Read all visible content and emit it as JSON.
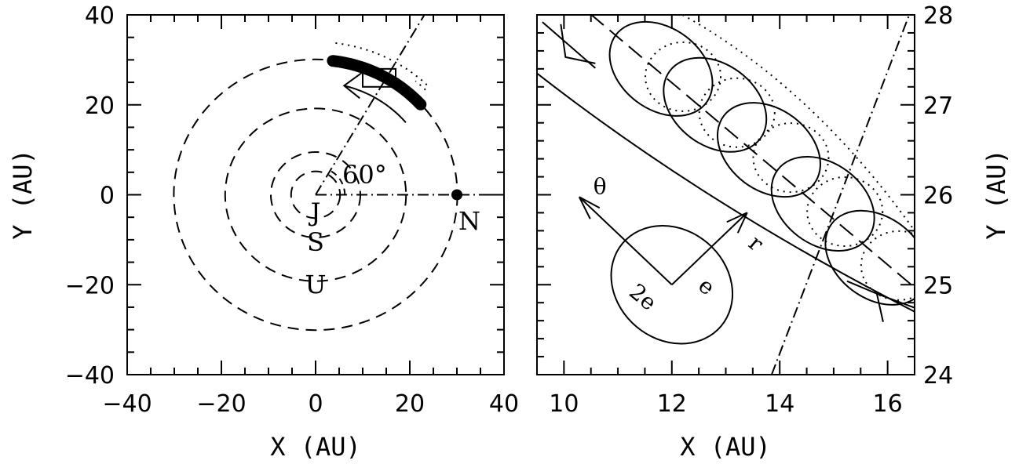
{
  "chart_data": [
    {
      "type": "line",
      "xlabel": "X (AU)",
      "ylabel": "Y (AU)",
      "xlim": [
        -40,
        40
      ],
      "ylim": [
        -40,
        40
      ],
      "x_ticks": [
        "−40",
        "−20",
        "0",
        "20",
        "40"
      ],
      "y_ticks": [
        "−40",
        "−20",
        "0",
        "20",
        "40"
      ],
      "orbits": [
        {
          "planet": "J",
          "radius_au": 5.2,
          "style": "dashed"
        },
        {
          "planet": "S",
          "radius_au": 9.5,
          "style": "dashed"
        },
        {
          "planet": "U",
          "radius_au": 19.2,
          "style": "dashed"
        },
        {
          "planet": "N",
          "radius_au": 30.1,
          "style": "dashed"
        }
      ],
      "neptune_position": {
        "x": 30,
        "y": 0
      },
      "angle_label": "60°",
      "reference_line_angle_deg": 60,
      "thick_arc_angles_deg": [
        42,
        83
      ],
      "thick_arc_radius_au": 30,
      "zoom_box": {
        "x": [
          10,
          17
        ],
        "y": [
          24,
          28
        ]
      }
    },
    {
      "type": "line",
      "xlabel": "X (AU)",
      "ylabel": "Y (AU)",
      "xlim": [
        9.5,
        16.5
      ],
      "ylim": [
        24,
        28
      ],
      "x_ticks": [
        "10",
        "12",
        "14",
        "16"
      ],
      "y_ticks": [
        "24",
        "25",
        "26",
        "27",
        "28"
      ],
      "ellipse_centers": [
        {
          "x": 11.8,
          "y": 27.4
        },
        {
          "x": 12.8,
          "y": 27.0
        },
        {
          "x": 13.8,
          "y": 26.5
        },
        {
          "x": 14.8,
          "y": 25.9
        },
        {
          "x": 15.8,
          "y": 25.3
        }
      ],
      "ellipse_semi_axes": {
        "radial_au": 1.0,
        "theta_au": 0.65
      },
      "key_labels": {
        "theta": "θ",
        "r": "r",
        "e": "e",
        "two_e": "2e"
      },
      "key_center": {
        "x": 12.0,
        "y": 25.0
      }
    }
  ]
}
